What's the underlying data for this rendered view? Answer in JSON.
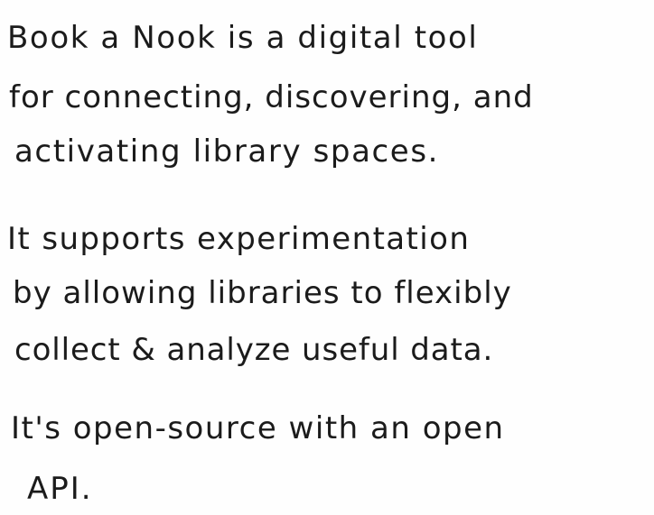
{
  "note": {
    "lines": [
      "Book a Nook is a digital tool",
      "for connecting, discovering, and",
      "activating library spaces.",
      "It supports experimentation",
      "by allowing libraries to flexibly",
      "collect & analyze useful data.",
      "It's open-source with an open",
      "API."
    ],
    "ink_color": "#1b1b1b",
    "paper_color": "#fefefe"
  }
}
